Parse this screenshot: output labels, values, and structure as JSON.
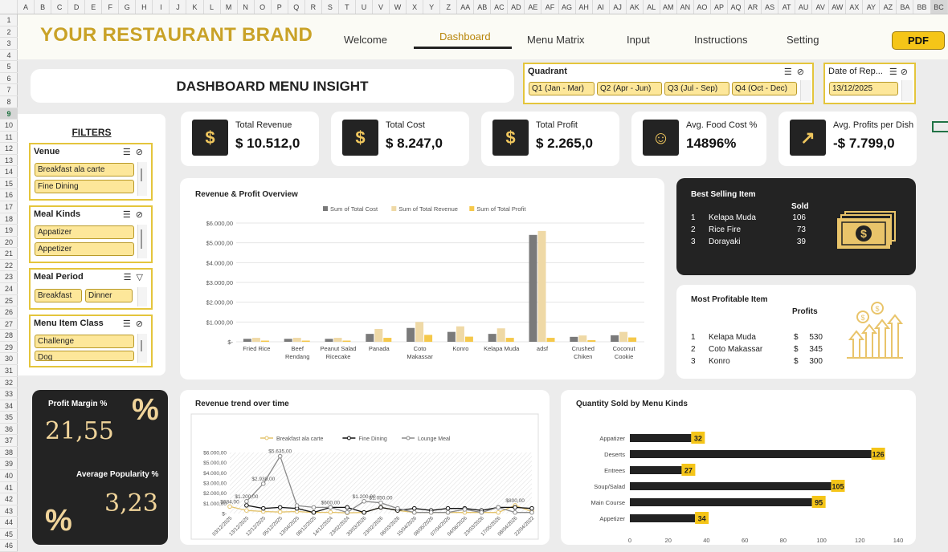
{
  "excel": {
    "columns": [
      "A",
      "B",
      "C",
      "D",
      "E",
      "F",
      "G",
      "H",
      "I",
      "J",
      "K",
      "L",
      "M",
      "N",
      "O",
      "P",
      "Q",
      "R",
      "S",
      "T",
      "U",
      "V",
      "W",
      "X",
      "Y",
      "Z",
      "AA",
      "AB",
      "AC",
      "AD",
      "AE",
      "AF",
      "AG",
      "AH",
      "AI",
      "AJ",
      "AK",
      "AL",
      "AM",
      "AN",
      "AO",
      "AP",
      "AQ",
      "AR",
      "AS",
      "AT",
      "AU",
      "AV",
      "AW",
      "AX",
      "AY",
      "AZ",
      "BA",
      "BB",
      "BC"
    ],
    "rows": [
      "1",
      "2",
      "3",
      "4",
      "5",
      "6",
      "7",
      "8",
      "9",
      "10",
      "11",
      "12",
      "13",
      "14",
      "15",
      "16",
      "17",
      "18",
      "19",
      "20",
      "21",
      "22",
      "23",
      "24",
      "25",
      "26",
      "27",
      "28",
      "29",
      "30",
      "31",
      "32",
      "33",
      "34",
      "35",
      "36",
      "37",
      "38",
      "39",
      "40",
      "41",
      "42",
      "43",
      "44",
      "45",
      "46"
    ],
    "selected_row": "9",
    "selected_col": "BC"
  },
  "header": {
    "brand": "YOUR RESTAURANT BRAND",
    "nav": [
      "Welcome",
      "Dashboard",
      "Menu Matrix",
      "Input",
      "Instructions",
      "Setting"
    ],
    "active_nav": "Dashboard",
    "pdf_label": "PDF"
  },
  "title": "DASHBOARD MENU INSIGHT",
  "quadrant_slicer": {
    "title": "Quadrant",
    "options": [
      "Q1 (Jan - Mar)",
      "Q2 (Apr - Jun)",
      "Q3 (Jul - Sep)",
      "Q4 (Oct - Dec)"
    ]
  },
  "date_slicer": {
    "title": "Date of Rep...",
    "value": "13/12/2025"
  },
  "filters": {
    "label": "FILTERS",
    "venue": {
      "title": "Venue",
      "options": [
        "Breakfast ala carte",
        "Fine Dining"
      ]
    },
    "meal_kinds": {
      "title": "Meal Kinds",
      "options": [
        "Appatizer",
        "Appetizer"
      ]
    },
    "meal_period": {
      "title": "Meal Period",
      "options": [
        "Breakfast",
        "Dinner"
      ]
    },
    "menu_item_class": {
      "title": "Menu Item Class",
      "options": [
        "Challenge",
        "Dog"
      ]
    }
  },
  "kpis": [
    {
      "label": "Total Revenue",
      "value": "$ 10.512,0",
      "icon": "dollar-coin-icon"
    },
    {
      "label": "Total Cost",
      "value": "$ 8.247,0",
      "icon": "price-tag-icon"
    },
    {
      "label": "Total Profit",
      "value": "$ 2.265,0",
      "icon": "money-bag-icon"
    },
    {
      "label": "Avg. Food Cost %",
      "value": "14896%",
      "icon": "person-coins-icon"
    },
    {
      "label": "Avg. Profits per Dish",
      "value": "-$ 7.799,0",
      "icon": "growth-chart-icon"
    }
  ],
  "best_selling": {
    "title": "Best Selling Item",
    "col_header": "Sold",
    "rows": [
      {
        "rank": "1",
        "name": "Kelapa Muda",
        "value": "106"
      },
      {
        "rank": "2",
        "name": "Rice Fire",
        "value": "73"
      },
      {
        "rank": "3",
        "name": "Dorayaki",
        "value": "39"
      }
    ]
  },
  "most_profitable": {
    "title": "Most Profitable Item",
    "col_header": "Profits",
    "rows": [
      {
        "rank": "1",
        "name": "Kelapa Muda",
        "currency": "$",
        "value": "530"
      },
      {
        "rank": "2",
        "name": "Coto Makassar",
        "currency": "$",
        "value": "345"
      },
      {
        "rank": "3",
        "name": "Konro",
        "currency": "$",
        "value": "300"
      }
    ]
  },
  "profit_margin": {
    "label": "Profit Margin %",
    "value": "21,55",
    "symbol": "%"
  },
  "avg_popularity": {
    "label": "Average Popularity %",
    "value": "3,23",
    "symbol": "%"
  },
  "chart_data": [
    {
      "type": "bar",
      "title": "Revenue & Profit Overview",
      "categories": [
        "Fried Rice",
        "Beef Rendang",
        "Peanut Salad Ricecake",
        "Panada",
        "Coto Makassar",
        "Konro",
        "Kelapa Muda",
        "adsf",
        "Crushed Chiken",
        "Coconut Cookie"
      ],
      "category_lines": [
        [
          "Fried Rice"
        ],
        [
          "Beef",
          "Rendang"
        ],
        [
          "Peanut Salad",
          "Ricecake"
        ],
        [
          "Panada"
        ],
        [
          "Coto",
          "Makassar"
        ],
        [
          "Konro"
        ],
        [
          "Kelapa Muda"
        ],
        [
          "adsf"
        ],
        [
          "Crushed",
          "Chiken"
        ],
        [
          "Coconut",
          "Cookie"
        ]
      ],
      "series": [
        {
          "name": "Sum of Total Cost",
          "color": "#7a7a7a",
          "values": [
            150,
            150,
            150,
            400,
            700,
            500,
            400,
            5400,
            250,
            330
          ]
        },
        {
          "name": "Sum of Total Revenue",
          "color": "#efd9a6",
          "values": [
            200,
            200,
            200,
            650,
            1000,
            780,
            680,
            5600,
            320,
            500
          ]
        },
        {
          "name": "Sum of Total Profit",
          "color": "#f5c84a",
          "values": [
            60,
            60,
            60,
            200,
            350,
            260,
            200,
            200,
            80,
            220
          ]
        }
      ],
      "y_ticks": [
        "$-",
        "$1.000,00",
        "$2.000,00",
        "$3.000,00",
        "$4.000,00",
        "$5.000,00",
        "$6.000,00"
      ],
      "ylim": [
        0,
        6000
      ]
    },
    {
      "type": "line",
      "title": "Revenue trend over time",
      "x": [
        "03/12/2025",
        "13/12/2025",
        "12/12/2025",
        "05/12/2025",
        "13/04/2025",
        "08/12/2025",
        "14/12/2024",
        "23/02/2024",
        "30/03/2026",
        "23/02/2026",
        "06/03/2026",
        "15/04/2026",
        "08/05/2026",
        "07/04/2026",
        "04/06/2026",
        "23/03/2026",
        "17/05/2026",
        "08/04/2026",
        "22/04/2022"
      ],
      "series": [
        {
          "name": "Breakfast ala carte",
          "color": "#e3c26a",
          "values": [
            684,
            300,
            200,
            140,
            200,
            100,
            120,
            60,
            100,
            600,
            300,
            100,
            100,
            100,
            100,
            100,
            100,
            800,
            200
          ]
        },
        {
          "name": "Fine Dining",
          "color": "#111111",
          "values": [
            null,
            800,
            500,
            600,
            500,
            100,
            600,
            600,
            100,
            600,
            300,
            500,
            300,
            500,
            500,
            300,
            600,
            600,
            500
          ]
        },
        {
          "name": "Lounge Meal",
          "color": "#8a8a8a",
          "values": [
            null,
            1200,
            2930,
            5635,
            784,
            600,
            600,
            100,
            1200,
            1050,
            500,
            100,
            100,
            100,
            400,
            100,
            600,
            100,
            100
          ]
        }
      ],
      "point_labels": [
        {
          "series": 2,
          "index": 3,
          "text": "$5.635,00"
        },
        {
          "series": 2,
          "index": 2,
          "text": "$2.930,00"
        },
        {
          "series": 2,
          "index": 1,
          "text": "$1.200,00"
        },
        {
          "series": 0,
          "index": 0,
          "text": "$684,00"
        },
        {
          "series": 2,
          "index": 6,
          "text": "$600,00"
        },
        {
          "series": 2,
          "index": 8,
          "text": "$1.200,00"
        },
        {
          "series": 2,
          "index": 9,
          "text": "$1.050,00"
        },
        {
          "series": 0,
          "index": 17,
          "text": "$800,00"
        }
      ],
      "y_ticks": [
        "$-",
        "$1.000,00",
        "$2.000,00",
        "$3.000,00",
        "$4.000,00",
        "$5.000,00",
        "$6.000,00"
      ],
      "ylim": [
        0,
        6000
      ]
    },
    {
      "type": "bar",
      "orientation": "horizontal",
      "title": "Quantity Sold by Menu Kinds",
      "categories": [
        "Appatizer",
        "Deserts",
        "Entrees",
        "Soup/Salad",
        "Main Course",
        "Appetizer"
      ],
      "values": [
        32,
        126,
        27,
        105,
        95,
        34
      ],
      "x_ticks": [
        "0",
        "20",
        "40",
        "60",
        "80",
        "100",
        "120",
        "140"
      ],
      "xlim": [
        0,
        140
      ],
      "bar_color": "#222222",
      "label_color": "#f5c518"
    }
  ]
}
